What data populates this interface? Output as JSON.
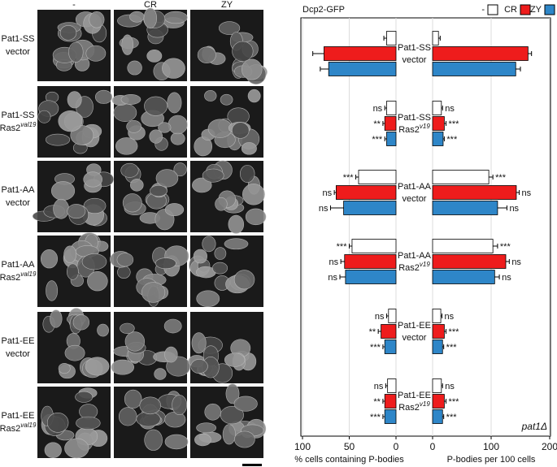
{
  "images": {
    "columns": [
      "-",
      "CR",
      "ZY"
    ],
    "rows": [
      {
        "line1": "Pat1-SS",
        "line2": "vector"
      },
      {
        "line1": "Pat1-SS",
        "line2": "Ras2",
        "sup": "val19"
      },
      {
        "line1": "Pat1-AA",
        "line2": "vector"
      },
      {
        "line1": "Pat1-AA",
        "line2": "Ras2",
        "sup": "val19"
      },
      {
        "line1": "Pat1-EE",
        "line2": "vector"
      },
      {
        "line1": "Pat1-EE",
        "line2": "Ras2",
        "sup": "val19"
      }
    ]
  },
  "chart_data": {
    "type": "bar",
    "orientation": "horizontal",
    "title": "Dcp2-GFP",
    "annotation": "pat1Δ",
    "grid": true,
    "groups": [
      {
        "line1": "Pat1-SS",
        "line2": "vector"
      },
      {
        "line1": "Pat1-SS",
        "line2": "Ras2",
        "sup": "v19"
      },
      {
        "line1": "Pat1-AA",
        "line2": "vector"
      },
      {
        "line1": "Pat1-AA",
        "line2": "Ras2",
        "sup": "v19"
      },
      {
        "line1": "Pat1-EE",
        "line2": "vector"
      },
      {
        "line1": "Pat1-EE",
        "line2": "Ras2",
        "sup": "v19"
      }
    ],
    "series": [
      {
        "name": "-",
        "color": "#ffffff"
      },
      {
        "name": "CR",
        "color": "#ee1c1c"
      },
      {
        "name": "ZY",
        "color": "#2e86c8"
      }
    ],
    "panels": [
      {
        "xlabel": "% cells containing P-bodies",
        "xlim": [
          100,
          0
        ],
        "xticks": [
          100,
          50,
          0
        ],
        "series": [
          {
            "values": [
              10,
              10,
              40,
              47,
              8,
              9
            ],
            "errors": [
              3,
              2,
              3,
              3,
              2,
              2
            ],
            "labels": [
              null,
              "ns",
              "***",
              "***",
              "ns",
              "ns"
            ]
          },
          {
            "values": [
              77,
              12,
              64,
              55,
              16,
              12
            ],
            "errors": [
              12,
              2,
              2,
              4,
              3,
              2
            ],
            "labels": [
              null,
              "**",
              "ns",
              "ns",
              "**",
              "**"
            ]
          },
          {
            "values": [
              72,
              10,
              56,
              54,
              12,
              12
            ],
            "errors": [
              9,
              2,
              14,
              6,
              2,
              2
            ],
            "labels": [
              null,
              "***",
              "ns",
              "ns",
              "***",
              "***"
            ]
          }
        ]
      },
      {
        "xlabel": "P-bodies per 100 cells",
        "xlim": [
          0,
          200
        ],
        "xticks": [
          0,
          100,
          200
        ],
        "series": [
          {
            "values": [
              10,
              15,
              96,
              103,
              14,
              15
            ],
            "errors": [
              3,
              2,
              7,
              8,
              2,
              2
            ],
            "labels": [
              null,
              "ns",
              "***",
              "***",
              "ns",
              "ns"
            ]
          },
          {
            "values": [
              163,
              20,
              143,
              125,
              20,
              20
            ],
            "errors": [
              6,
              3,
              5,
              6,
              3,
              3
            ],
            "labels": [
              null,
              "***",
              "ns",
              "ns",
              "***",
              "***"
            ]
          },
          {
            "values": [
              142,
              18,
              111,
              106,
              17,
              17
            ],
            "errors": [
              8,
              2,
              16,
              8,
              2,
              2
            ],
            "labels": [
              null,
              "***",
              "ns",
              "ns",
              "***",
              "***"
            ]
          }
        ]
      }
    ]
  }
}
